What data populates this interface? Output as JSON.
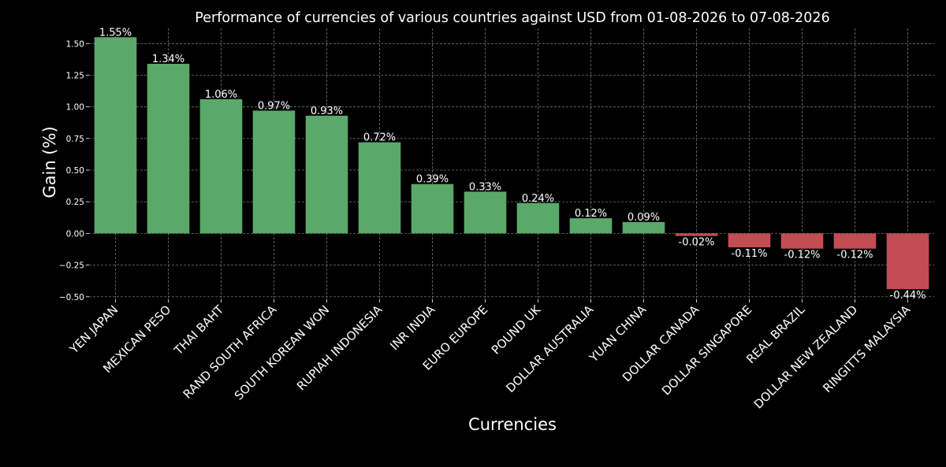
{
  "chart_data": {
    "type": "bar",
    "title": "Performance of currencies of various countries against USD from 01-08-2026 to 07-08-2026",
    "xlabel": "Currencies",
    "ylabel": "Gain (%)",
    "categories": [
      "YEN JAPAN",
      "MEXICAN PESO",
      "THAI BAHT",
      "RAND SOUTH AFRICA",
      "SOUTH KOREAN WON",
      "RUPIAH INDONESIA",
      "INR INDIA",
      "EURO EUROPE",
      "POUND UK",
      "DOLLAR AUSTRALIA",
      "YUAN CHINA",
      "DOLLAR CANADA",
      "DOLLAR SINGAPORE",
      "REAL BRAZIL",
      "DOLLAR NEW ZEALAND",
      "RINGITTS MALAYSIA"
    ],
    "values": [
      1.55,
      1.34,
      1.06,
      0.97,
      0.93,
      0.72,
      0.39,
      0.33,
      0.24,
      0.12,
      0.09,
      -0.02,
      -0.11,
      -0.12,
      -0.12,
      -0.44
    ],
    "data_labels": [
      "1.55%",
      "1.34%",
      "1.06%",
      "0.97%",
      "0.93%",
      "0.72%",
      "0.39%",
      "0.33%",
      "0.24%",
      "0.12%",
      "0.09%",
      "-0.02%",
      "-0.11%",
      "-0.12%",
      "-0.12%",
      "-0.44%"
    ],
    "yticks": [
      -0.5,
      -0.25,
      0.0,
      0.25,
      0.5,
      0.75,
      1.0,
      1.25,
      1.5
    ],
    "ytick_labels": [
      "−0.50",
      "−0.25",
      "0.00",
      "0.25",
      "0.50",
      "0.75",
      "1.00",
      "1.25",
      "1.50"
    ],
    "ylim": [
      -0.52,
      1.62
    ],
    "grid": true,
    "colors": {
      "positive": "#5aa86a",
      "negative": "#c24d52",
      "background": "#000000",
      "text": "#ffffff",
      "grid": "#9a9a9a"
    }
  }
}
